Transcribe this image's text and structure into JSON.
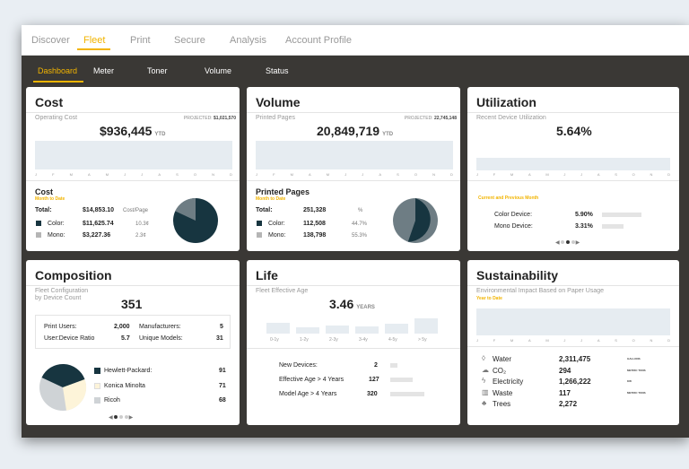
{
  "topnav": {
    "items": [
      "Discover",
      "Fleet",
      "Print",
      "Secure",
      "Analysis",
      "Account Profile"
    ],
    "active": "Fleet"
  },
  "subnav": {
    "items": [
      "Dashboard",
      "Meter",
      "Toner",
      "Volume",
      "Status"
    ],
    "active": "Dashboard"
  },
  "months": [
    "J",
    "F",
    "M",
    "A",
    "M",
    "J",
    "J",
    "A",
    "S",
    "O",
    "N",
    "D"
  ],
  "cost": {
    "title": "Cost",
    "label": "Operating Cost",
    "value": "$936,445",
    "unit": "YTD",
    "projected_label": "PROJECTED:",
    "projected": "$1,021,570",
    "sub_title": "Cost",
    "sub_period": "Month to Date",
    "total_label": "Total:",
    "total_value": "$14,853.10",
    "total_unit": "Cost/Page",
    "color_label": "Color:",
    "color_value": "$11,625.74",
    "color_rate": "10.3¢",
    "mono_label": "Mono:",
    "mono_value": "$3,227.36",
    "mono_rate": "2.3¢"
  },
  "volume": {
    "title": "Volume",
    "label": "Printed Pages",
    "value": "20,849,719",
    "unit": "YTD",
    "projected_label": "PROJECTED:",
    "projected": "22,745,148",
    "sub_title": "Printed Pages",
    "sub_period": "Month to Date",
    "total_label": "Total:",
    "total_value": "251,328",
    "total_unit": "%",
    "color_label": "Color:",
    "color_value": "112,508",
    "color_pct": "44.7%",
    "mono_label": "Mono:",
    "mono_value": "138,798",
    "mono_pct": "55.3%"
  },
  "utilization": {
    "title": "Utilization",
    "label": "Recent Device Utilization",
    "value": "5.64%",
    "period": "Current and Previous Month",
    "rows": [
      {
        "label": "Color Device:",
        "value": "5.90%",
        "fraction": 0.59
      },
      {
        "label": "Mono Device:",
        "value": "3.31%",
        "fraction": 0.331
      }
    ]
  },
  "composition": {
    "title": "Composition",
    "label_line1": "Fleet Configuration",
    "label_line2": "by Device Count",
    "value": "351",
    "stats": [
      {
        "label": "Print Users:",
        "value": "2,000"
      },
      {
        "label": "User:Device Ratio",
        "value": "5.7"
      },
      {
        "label": "Manufacturers:",
        "value": "5"
      },
      {
        "label": "Unique Models:",
        "value": "31"
      }
    ],
    "brands": [
      {
        "name": "Hewlett-Packard:",
        "value": "91",
        "color": "#173540"
      },
      {
        "name": "Konica Minolta",
        "value": "71",
        "color": "#fdf4d9"
      },
      {
        "name": "Ricoh",
        "value": "68",
        "color": "#cfd3d6"
      }
    ]
  },
  "life": {
    "title": "Life",
    "label": "Fleet Effective Age",
    "value": "3.46",
    "unit": "YEARS",
    "bars": [
      {
        "label": "0-1y",
        "value": 0.6
      },
      {
        "label": "1-2y",
        "value": 0.35
      },
      {
        "label": "2-3y",
        "value": 0.45
      },
      {
        "label": "3-4y",
        "value": 0.4
      },
      {
        "label": "4-5y",
        "value": 0.55
      },
      {
        "label": "> 5y",
        "value": 0.85
      }
    ],
    "rows": [
      {
        "label": "New Devices:",
        "value": "2",
        "fraction": 0.2
      },
      {
        "label": "Effective Age > 4 Years",
        "value": "127",
        "fraction": 0.65
      },
      {
        "label": "Model Age > 4 Years",
        "value": "320",
        "fraction": 1.0
      }
    ]
  },
  "sustainability": {
    "title": "Sustainability",
    "label": "Environmental Impact Based on Paper Usage",
    "period": "Year to Date",
    "rows": [
      {
        "icon": "water-drop-icon",
        "label": "Water",
        "value": "2,311,475",
        "unit": "GALLONS"
      },
      {
        "icon": "cloud-co2-icon",
        "label": "CO₂",
        "value": "294",
        "unit": "METRIC TONS"
      },
      {
        "icon": "lightning-icon",
        "label": "Electricity",
        "value": "1,266,222",
        "unit": "KW"
      },
      {
        "icon": "trash-can-icon",
        "label": "Waste",
        "value": "117",
        "unit": "METRIC TONS"
      },
      {
        "icon": "tree-icon",
        "label": "Trees",
        "value": "2,272",
        "unit": ""
      }
    ]
  },
  "colors": {
    "accent": "#f2b400",
    "dark": "#173540",
    "gray": "#6e7d84",
    "light_gray": "#b5b5b5"
  }
}
